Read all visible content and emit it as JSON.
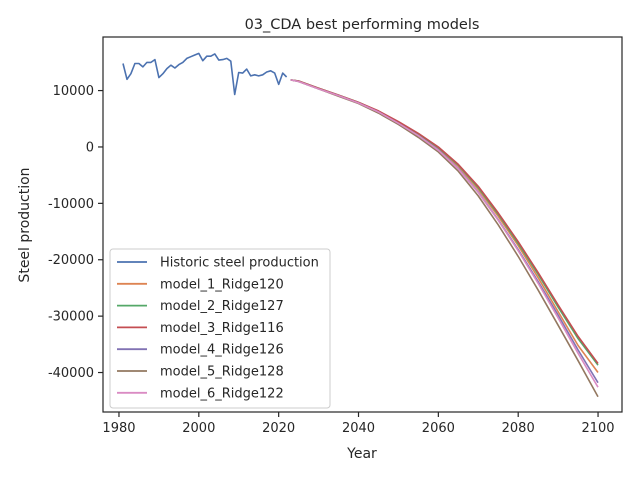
{
  "chart_data": {
    "type": "line",
    "title": "03_CDA best performing models",
    "xlabel": "Year",
    "ylabel": "Steel production",
    "xlim": [
      1976,
      2106
    ],
    "ylim": [
      -47000,
      19500
    ],
    "xticks": [
      1980,
      2000,
      2020,
      2040,
      2060,
      2080,
      2100
    ],
    "yticks": [
      10000,
      0,
      -10000,
      -20000,
      -30000,
      -40000
    ],
    "grid": false,
    "legend_position": "lower-left",
    "historic": {
      "name": "Historic steel production",
      "color": "#4c72b0",
      "x": [
        1981,
        1982,
        1983,
        1984,
        1985,
        1986,
        1987,
        1988,
        1989,
        1990,
        1991,
        1992,
        1993,
        1994,
        1995,
        1996,
        1997,
        1998,
        1999,
        2000,
        2001,
        2002,
        2003,
        2004,
        2005,
        2006,
        2007,
        2008,
        2009,
        2010,
        2011,
        2012,
        2013,
        2014,
        2015,
        2016,
        2017,
        2018,
        2019,
        2020,
        2021,
        2022
      ],
      "y": [
        14800,
        12000,
        13000,
        14800,
        14800,
        14200,
        15000,
        15000,
        15500,
        12300,
        13000,
        13900,
        14500,
        14000,
        14600,
        15000,
        15700,
        16000,
        16300,
        16600,
        15300,
        16100,
        16100,
        16500,
        15400,
        15500,
        15700,
        15200,
        9300,
        13200,
        13100,
        13800,
        12600,
        12800,
        12600,
        12800,
        13300,
        13500,
        13100,
        11100,
        13100,
        12400
      ]
    },
    "models": {
      "x": [
        2023,
        2025,
        2030,
        2035,
        2040,
        2045,
        2050,
        2055,
        2060,
        2065,
        2070,
        2075,
        2080,
        2085,
        2090,
        2095,
        2100
      ],
      "series": [
        {
          "name": "model_1_Ridge120",
          "color": "#dd8452",
          "y": [
            11900,
            11700,
            10400,
            9200,
            7900,
            6300,
            4400,
            2200,
            -200,
            -3400,
            -7500,
            -12300,
            -17500,
            -23200,
            -29200,
            -35200,
            -40000
          ]
        },
        {
          "name": "model_2_Ridge127",
          "color": "#55a868",
          "y": [
            11900,
            11700,
            10400,
            9200,
            7900,
            6300,
            4400,
            2300,
            -100,
            -3200,
            -7200,
            -11900,
            -17100,
            -22600,
            -28400,
            -34000,
            -38700
          ]
        },
        {
          "name": "model_3_Ridge116",
          "color": "#c44e52",
          "y": [
            11900,
            11700,
            10400,
            9200,
            7900,
            6400,
            4500,
            2400,
            0,
            -3100,
            -7000,
            -11700,
            -16800,
            -22300,
            -28000,
            -33600,
            -38400
          ]
        },
        {
          "name": "model_4_Ridge126",
          "color": "#8172b3",
          "y": [
            11900,
            11600,
            10300,
            9100,
            7800,
            6200,
            4200,
            2000,
            -500,
            -3800,
            -8000,
            -12900,
            -18200,
            -23900,
            -29800,
            -36000,
            -41800
          ]
        },
        {
          "name": "model_5_Ridge128",
          "color": "#937860",
          "y": [
            11900,
            11600,
            10300,
            9000,
            7700,
            6000,
            4000,
            1700,
            -900,
            -4300,
            -8700,
            -13800,
            -19400,
            -25400,
            -31600,
            -37900,
            -44300
          ]
        },
        {
          "name": "model_6_Ridge122",
          "color": "#da8bc3",
          "y": [
            11900,
            11600,
            10300,
            9100,
            7800,
            6200,
            4200,
            2000,
            -600,
            -3900,
            -8100,
            -13000,
            -18400,
            -24200,
            -30300,
            -36600,
            -42600
          ]
        }
      ]
    }
  }
}
